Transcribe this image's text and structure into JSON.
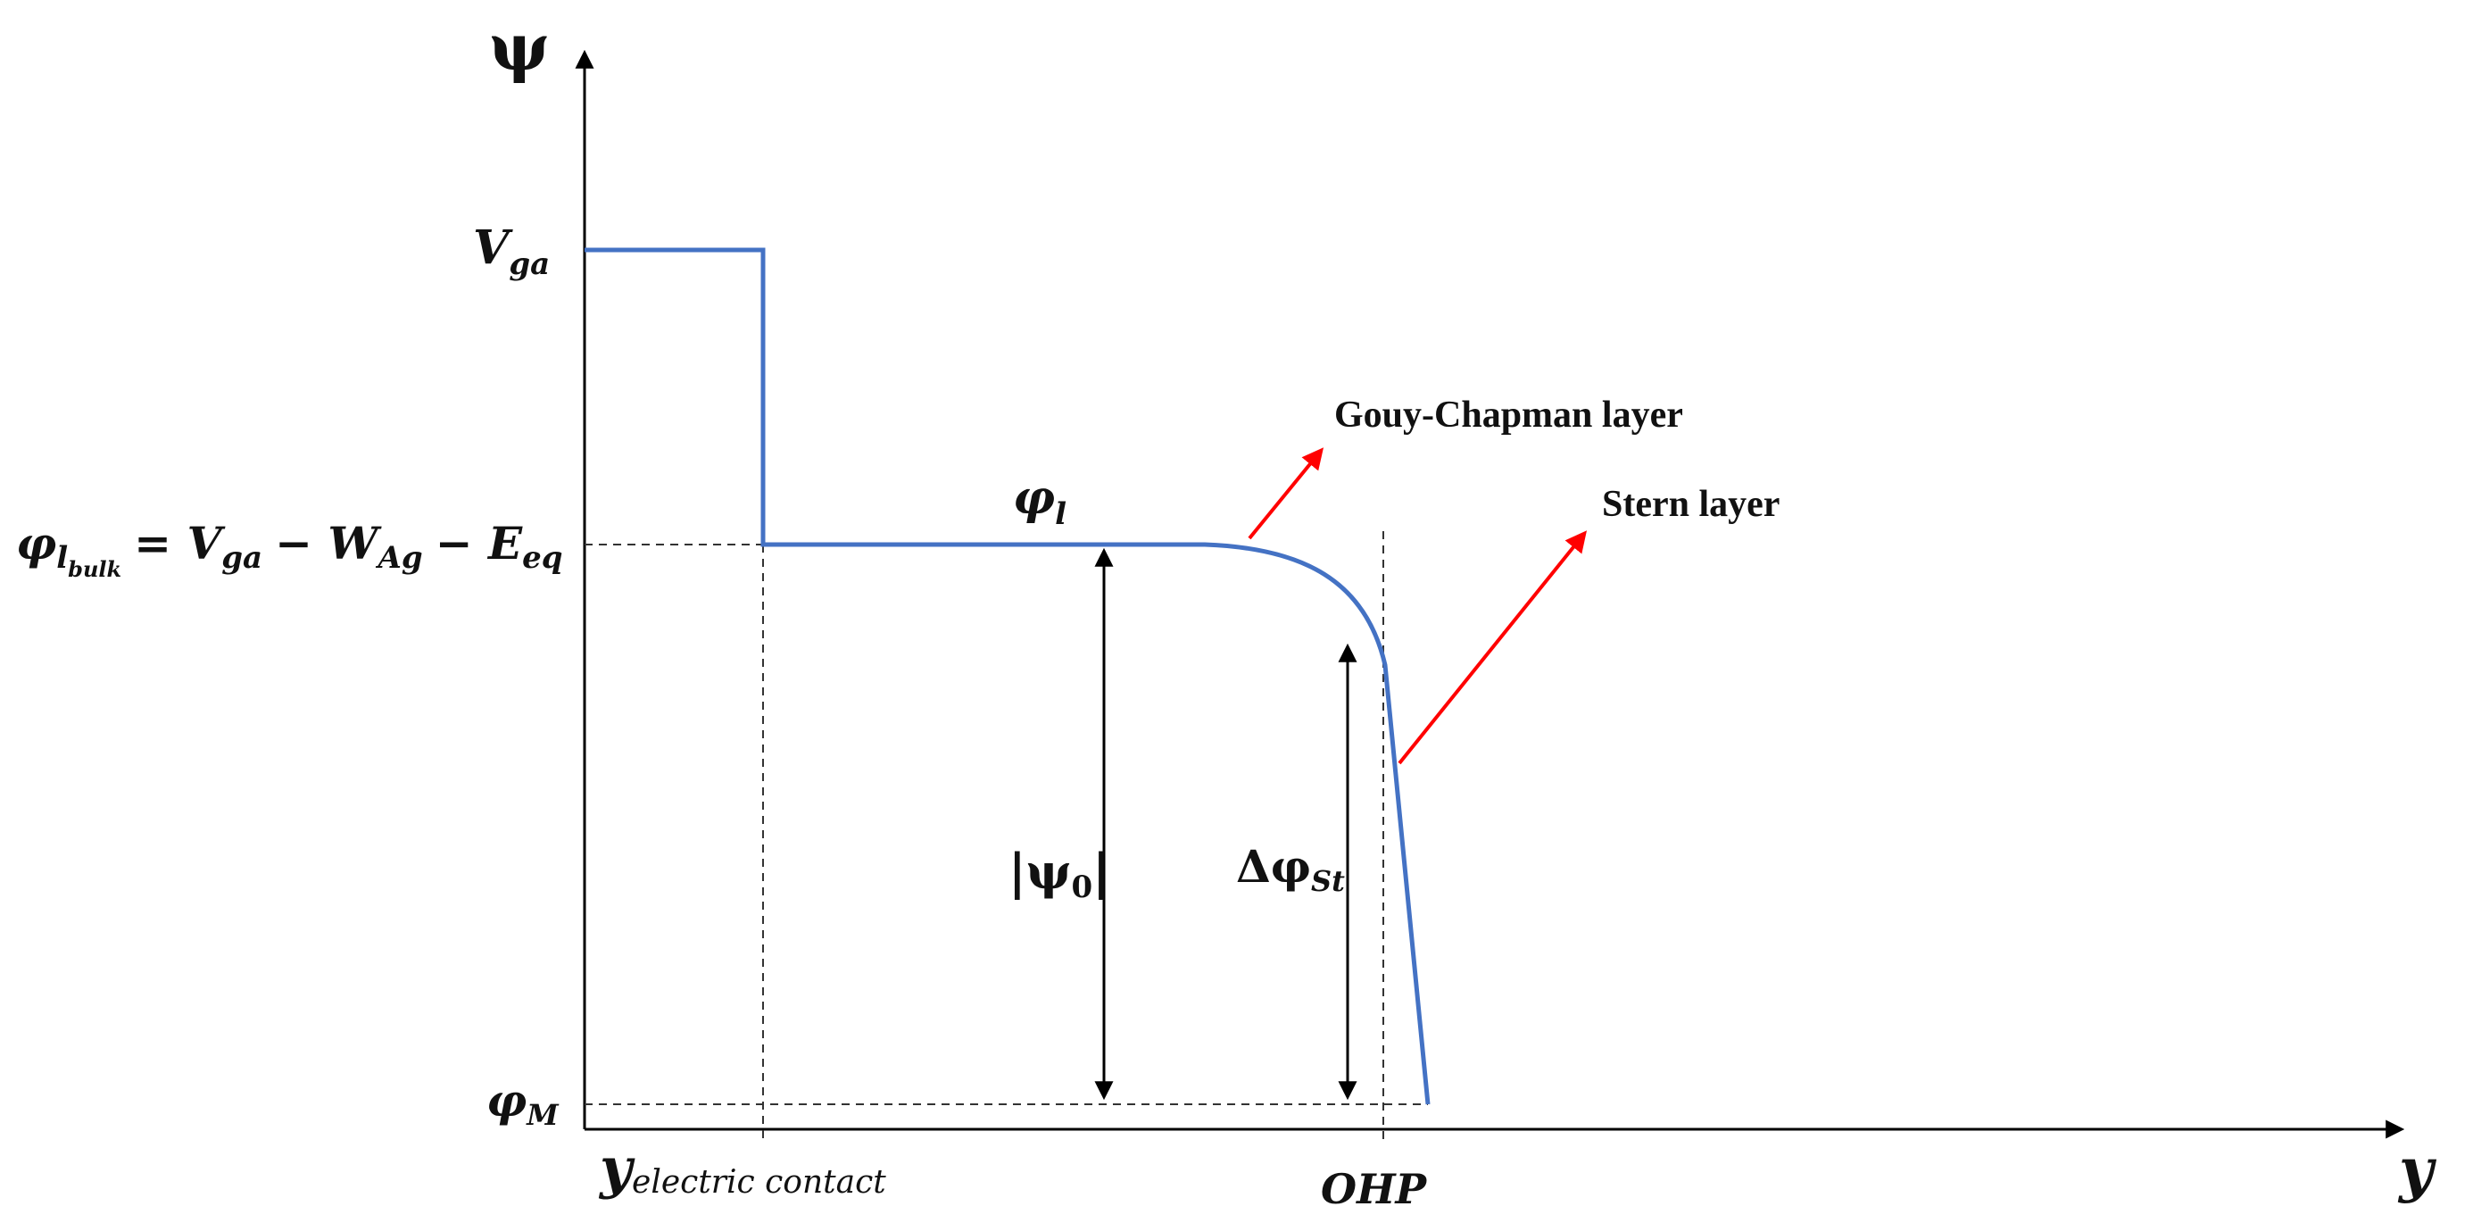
{
  "axes": {
    "y_axis_label": "ψ",
    "x_axis_label": "y"
  },
  "potential_levels": {
    "v_ga": {
      "main": "V",
      "sub": "ga"
    },
    "phi_l_bulk": {
      "phi": "φ",
      "phi_sub": "l",
      "phi_subsub": "bulk",
      "rhs1": "= V",
      "rhs1_sub": "ga",
      "rhs2": "− W",
      "rhs2_sub": "Ag",
      "rhs3": "− E",
      "rhs3_sub": "eq"
    },
    "phi_m": {
      "main": "φ",
      "sub": "M"
    }
  },
  "positions": {
    "y_contact": {
      "main": "y",
      "sub": "electric contact"
    },
    "ohp": "OHP"
  },
  "curve_labels": {
    "phi_l": {
      "main": "φ",
      "sub": "l"
    },
    "psi_0": {
      "open": "|ψ",
      "sub": "0",
      "close": "|"
    },
    "delta_phi_st": {
      "main": "Δφ",
      "sub": "St"
    }
  },
  "annotations": {
    "gouy_chapman": "Gouy-Chapman layer",
    "stern": "Stern layer"
  },
  "colors": {
    "curve": "#4472C4",
    "pointer": "#FF0000",
    "axis": "#000000",
    "guide": "#333333"
  }
}
